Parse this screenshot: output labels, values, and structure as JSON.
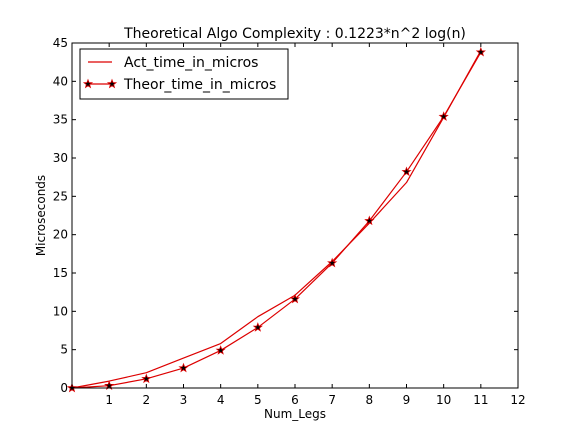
{
  "chart_data": {
    "type": "line",
    "title": "Theoretical Algo Complexity : 0.1223*n^2 log(n)",
    "xlabel": "Num_Legs",
    "ylabel": "Microseconds",
    "xlim": [
      0,
      12
    ],
    "ylim": [
      0,
      45
    ],
    "xticks": [
      "1",
      "2",
      "3",
      "4",
      "5",
      "6",
      "7",
      "8",
      "9",
      "10",
      "11",
      "12"
    ],
    "yticks": [
      "0",
      "5",
      "10",
      "15",
      "20",
      "25",
      "30",
      "35",
      "40",
      "45"
    ],
    "grid": false,
    "legend_position": "top-left",
    "series": [
      {
        "name": "Act_time_in_micros",
        "color": "#dd0000",
        "marker": "none",
        "x": [
          0,
          1,
          2,
          3,
          4,
          5,
          6,
          7,
          8,
          9,
          10,
          11
        ],
        "y": [
          0.0,
          0.9,
          2.0,
          3.9,
          5.8,
          9.3,
          12.1,
          16.5,
          21.5,
          26.8,
          35.3,
          44.0
        ]
      },
      {
        "name": "Theor_time_in_micros",
        "color": "#dd0000",
        "marker": "star",
        "x": [
          0,
          1,
          2,
          3,
          4,
          5,
          6,
          7,
          8,
          9,
          10,
          11
        ],
        "y": [
          0.0,
          0.3,
          1.2,
          2.6,
          4.9,
          7.9,
          11.6,
          16.3,
          21.8,
          28.2,
          35.4,
          43.8
        ]
      }
    ]
  }
}
